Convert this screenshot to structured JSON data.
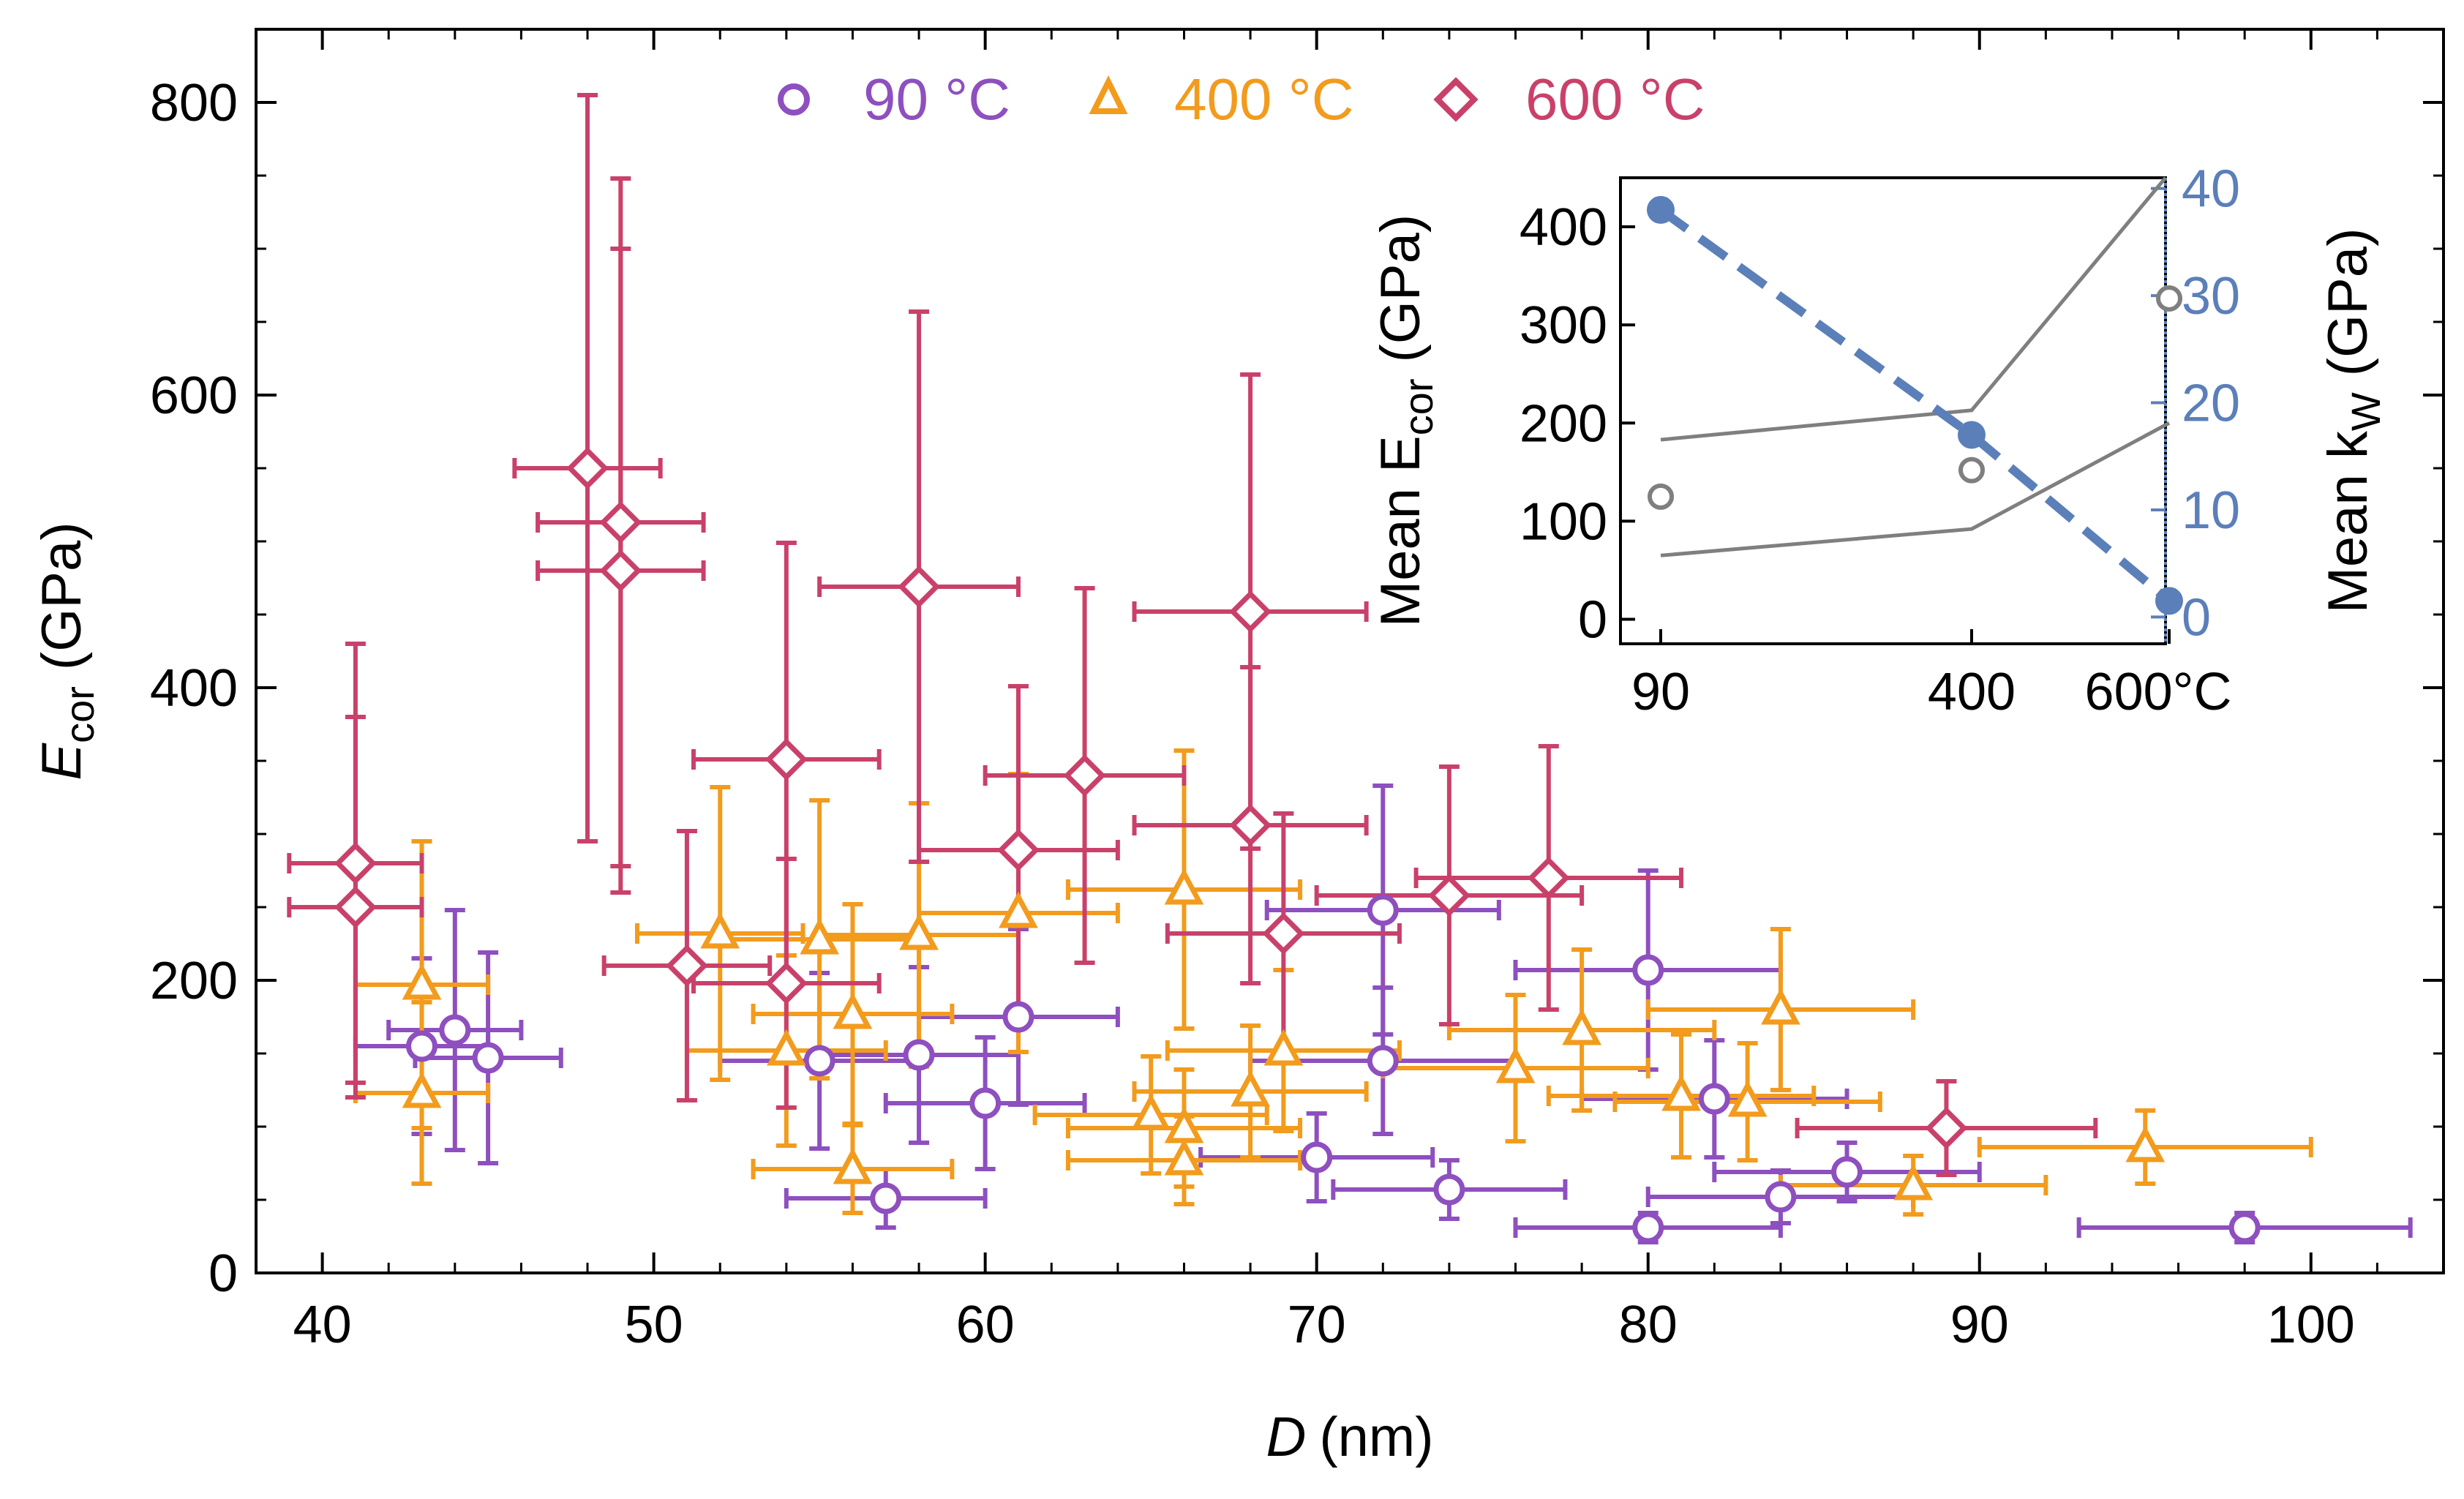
{
  "chart_data": [
    {
      "type": "scatter",
      "title": "",
      "xlabel": "D",
      "xlabel_unit": "(nm)",
      "ylabel": "E",
      "ylabel_sub": "cor",
      "ylabel_unit": "(GPa)",
      "xlim": [
        38,
        104
      ],
      "ylim": [
        0,
        850
      ],
      "x_ticks": [
        40,
        50,
        60,
        70,
        80,
        90,
        100
      ],
      "y_ticks": [
        0,
        200,
        400,
        600,
        800
      ],
      "legend_position": "top-center",
      "series": [
        {
          "name": "90 °C",
          "label": "90 °C",
          "marker": "circle",
          "color": "#8e4fbf",
          "points": [
            {
              "x": 43,
              "y": 155,
              "xerr": 2,
              "yerr": 60
            },
            {
              "x": 44,
              "y": 166,
              "xerr": 2,
              "yerr": 82
            },
            {
              "x": 45,
              "y": 147,
              "xerr": 2.2,
              "yerr": 72
            },
            {
              "x": 55,
              "y": 145,
              "xerr": 3,
              "yerr": 60
            },
            {
              "x": 57,
              "y": 51,
              "xerr": 3,
              "yerr": 20
            },
            {
              "x": 58,
              "y": 149,
              "xerr": 3,
              "yerr": 60
            },
            {
              "x": 60,
              "y": 116,
              "xerr": 3,
              "yerr": 45
            },
            {
              "x": 61,
              "y": 175,
              "xerr": 3,
              "yerr": 60
            },
            {
              "x": 70,
              "y": 79,
              "xerr": 3.5,
              "yerr": 30
            },
            {
              "x": 72,
              "y": 248,
              "xerr": 3.5,
              "yerr": 85
            },
            {
              "x": 72,
              "y": 145,
              "xerr": 4,
              "yerr": 50
            },
            {
              "x": 74,
              "y": 57,
              "xerr": 3.5,
              "yerr": 20
            },
            {
              "x": 80,
              "y": 31,
              "xerr": 4,
              "yerr": 10
            },
            {
              "x": 80,
              "y": 207,
              "xerr": 4,
              "yerr": 68
            },
            {
              "x": 82,
              "y": 119,
              "xerr": 4,
              "yerr": 40
            },
            {
              "x": 84,
              "y": 52,
              "xerr": 4,
              "yerr": 18
            },
            {
              "x": 86,
              "y": 69,
              "xerr": 4,
              "yerr": 20
            },
            {
              "x": 98,
              "y": 31,
              "xerr": 5,
              "yerr": 10
            }
          ]
        },
        {
          "name": "400 °C",
          "label": "400 °C",
          "marker": "triangle",
          "color": "#f29b1d",
          "points": [
            {
              "x": 43,
              "y": 197,
              "xerr": 2,
              "yerr": 98
            },
            {
              "x": 43,
              "y": 123,
              "xerr": 2,
              "yerr": 62
            },
            {
              "x": 52,
              "y": 232,
              "xerr": 2.5,
              "yerr": 100
            },
            {
              "x": 54,
              "y": 152,
              "xerr": 3,
              "yerr": 65
            },
            {
              "x": 55,
              "y": 228,
              "xerr": 3,
              "yerr": 95
            },
            {
              "x": 56,
              "y": 177,
              "xerr": 3,
              "yerr": 75
            },
            {
              "x": 56,
              "y": 71,
              "xerr": 3,
              "yerr": 30
            },
            {
              "x": 58,
              "y": 231,
              "xerr": 3,
              "yerr": 90
            },
            {
              "x": 61,
              "y": 246,
              "xerr": 3,
              "yerr": 95
            },
            {
              "x": 65,
              "y": 108,
              "xerr": 3.5,
              "yerr": 40
            },
            {
              "x": 66,
              "y": 262,
              "xerr": 3.5,
              "yerr": 95
            },
            {
              "x": 66,
              "y": 99,
              "xerr": 3.5,
              "yerr": 40
            },
            {
              "x": 66,
              "y": 77,
              "xerr": 3.5,
              "yerr": 30
            },
            {
              "x": 68,
              "y": 124,
              "xerr": 3.5,
              "yerr": 45
            },
            {
              "x": 69,
              "y": 152,
              "xerr": 3.5,
              "yerr": 55
            },
            {
              "x": 76,
              "y": 140,
              "xerr": 4,
              "yerr": 50
            },
            {
              "x": 78,
              "y": 166,
              "xerr": 4,
              "yerr": 55
            },
            {
              "x": 81,
              "y": 121,
              "xerr": 4,
              "yerr": 42
            },
            {
              "x": 83,
              "y": 117,
              "xerr": 4,
              "yerr": 40
            },
            {
              "x": 84,
              "y": 180,
              "xerr": 4,
              "yerr": 55
            },
            {
              "x": 88,
              "y": 60,
              "xerr": 4,
              "yerr": 20
            },
            {
              "x": 95,
              "y": 86,
              "xerr": 5,
              "yerr": 25
            }
          ]
        },
        {
          "name": "600 °C",
          "label": "600 °C",
          "marker": "diamond",
          "color": "#c9416b",
          "points": [
            {
              "x": 41,
              "y": 280,
              "xerr": 2,
              "yerr": 150
            },
            {
              "x": 41,
              "y": 250,
              "xerr": 2,
              "yerr": 130
            },
            {
              "x": 48,
              "y": 550,
              "xerr": 2.2,
              "yerr": 255
            },
            {
              "x": 49,
              "y": 513,
              "xerr": 2.5,
              "yerr": 235
            },
            {
              "x": 49,
              "y": 480,
              "xerr": 2.5,
              "yerr": 220
            },
            {
              "x": 51,
              "y": 210,
              "xerr": 2.5,
              "yerr": 92
            },
            {
              "x": 54,
              "y": 351,
              "xerr": 2.8,
              "yerr": 148
            },
            {
              "x": 54,
              "y": 198,
              "xerr": 2.8,
              "yerr": 85
            },
            {
              "x": 58,
              "y": 469,
              "xerr": 3,
              "yerr": 188
            },
            {
              "x": 61,
              "y": 289,
              "xerr": 3,
              "yerr": 112
            },
            {
              "x": 63,
              "y": 340,
              "xerr": 3,
              "yerr": 128
            },
            {
              "x": 68,
              "y": 452,
              "xerr": 3.5,
              "yerr": 162
            },
            {
              "x": 68,
              "y": 306,
              "xerr": 3.5,
              "yerr": 108
            },
            {
              "x": 69,
              "y": 232,
              "xerr": 3.5,
              "yerr": 82
            },
            {
              "x": 74,
              "y": 258,
              "xerr": 4,
              "yerr": 88
            },
            {
              "x": 77,
              "y": 270,
              "xerr": 4,
              "yerr": 90
            },
            {
              "x": 89,
              "y": 99,
              "xerr": 4.5,
              "yerr": 32
            }
          ]
        }
      ]
    },
    {
      "type": "line",
      "title": "",
      "xlabel": "",
      "x_categories": [
        "90",
        "400",
        "600°C"
      ],
      "ylabel_left": "Mean E",
      "ylabel_left_sub": "cor",
      "ylabel_left_unit": "(GPa)",
      "ylabel_right": "Mean k",
      "ylabel_right_sub": "W",
      "ylabel_right_unit": "(GPa)",
      "ylim_left": [
        -25,
        450
      ],
      "ylim_right": [
        -2.5,
        41
      ],
      "y_ticks_left": [
        0,
        100,
        200,
        300,
        400
      ],
      "y_ticks_right": [
        0,
        10,
        20,
        30,
        40
      ],
      "legend_position": "none",
      "mean_ecor": {
        "color": "#7f7f7f",
        "marker": "circle-open",
        "values": [
          125,
          152,
          327
        ],
        "lower_bound": [
          65,
          92,
          200
        ],
        "upper_bound": [
          183,
          213,
          425
        ]
      },
      "mean_kw": {
        "color": "#5b7fb9",
        "marker": "circle-filled",
        "line": "dashed",
        "values": [
          38,
          17,
          1.5
        ]
      }
    }
  ]
}
